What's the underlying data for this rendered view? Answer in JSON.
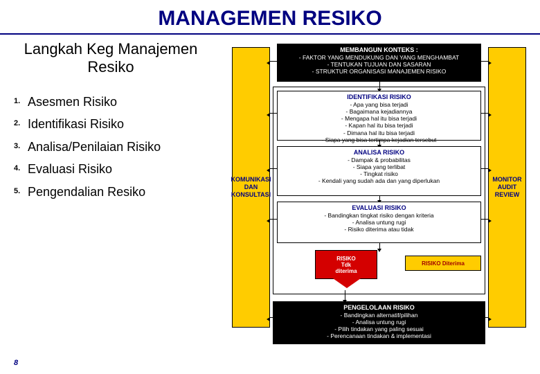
{
  "title": "MANAGEMEN RESIKO",
  "title_color": "#000080",
  "hr_color": "#000080",
  "subtitle": "Langkah Keg Manajemen Resiko",
  "list": [
    {
      "n": "1.",
      "t": "Asesmen Risiko"
    },
    {
      "n": "2.",
      "t": "Identifikasi Risiko"
    },
    {
      "n": "3.",
      "t": "Analisa/Penilaian Risiko"
    },
    {
      "n": "4.",
      "t": "Evaluasi Risiko"
    },
    {
      "n": "5.",
      "t": "Pengendalian Resiko"
    }
  ],
  "slide_number": "8",
  "diagram": {
    "sidebar_left": "KOMUNIKASI\nDAN\nKONSULTASI",
    "sidebar_right": "MONITOR\nAUDIT\nREVIEW",
    "sidebar_bg": "#ffcc00",
    "top_title": "MEMBANGUN KONTEKS :",
    "top_lines": "- FAKTOR YANG MENDUKUNG DAN YANG MENGHAMBAT\n- TENTUKAN TUJUAN DAN SASARAN\n- STRUKTUR ORGANISASI MANAJEMEN RISIKO",
    "id_title": "IDENTIFIKASI RISIKO",
    "id_lines": "- Apa yang bisa terjadi\n- Bagaimana kejadiannya\n- Mengapa hal itu bisa terjadi\n- Kapan hal itu bisa terjadi\n- Dimana hal itu bisa terjadi\n- Siapa yang bisa tertimpa kejadian tersebut",
    "an_title": "ANALISA RISIKO",
    "an_lines": "- Dampak & probabilitas\n- Siapa yang terlibat\n- Tingkat risiko\n- Kendali yang sudah ada dan yang diperlukan",
    "ev_title": "EVALUASI RISIKO",
    "ev_lines": "- Bandingkan tingkat risiko dengan kriteria\n- Analisa untung rugi\n- Risiko diterima atau tidak",
    "red_label": "RISIKO\nTdk\nditerima",
    "accept_label": "RISIKO Diterima",
    "bot_title": "PENGELOLAAN RISIKO",
    "bot_lines": "- Bandingkan alternatif/pilihan\n- Analisa untung rugi\n- Pilih tindakan yang paling sesuai\n- Perencanaan tindakan & implementasi"
  }
}
